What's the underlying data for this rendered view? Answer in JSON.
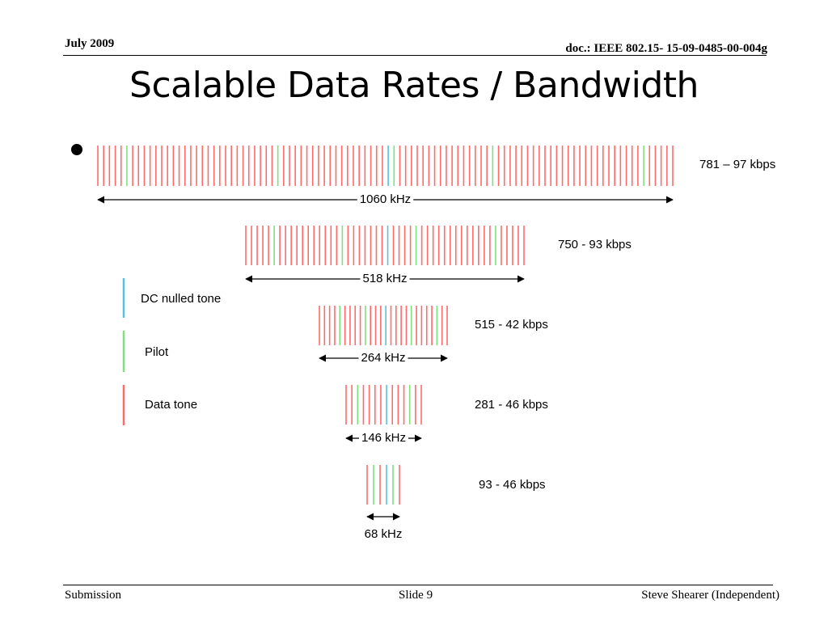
{
  "header": {
    "date": "July 2009",
    "doc": "doc.: IEEE 802.15- 15-09-0485-00-004g"
  },
  "title": "Scalable Data Rates / Bandwidth",
  "legend": [
    {
      "name": "dc",
      "label": "DC nulled tone",
      "color": "#5bc0de"
    },
    {
      "name": "pilot",
      "label": "Pilot",
      "color": "#7fe07f"
    },
    {
      "name": "data",
      "label": "Data tone",
      "color": "#ff6b6b"
    }
  ],
  "chart_data": {
    "type": "spectrum",
    "bands": [
      {
        "bandwidth": "1060 kHz",
        "rate": "781 – 97 kbps"
      },
      {
        "bandwidth": "518 kHz",
        "rate": "750 - 93 kbps"
      },
      {
        "bandwidth": "264 kHz",
        "rate": "515 - 42 kbps"
      },
      {
        "bandwidth": "146 kHz",
        "rate": "281 - 46 kbps"
      },
      {
        "bandwidth": "68 kHz",
        "rate": "93 - 46 kbps"
      }
    ]
  },
  "footer": {
    "left": "Submission",
    "center": "Slide 9",
    "right": "Steve Shearer  (Independent)"
  }
}
